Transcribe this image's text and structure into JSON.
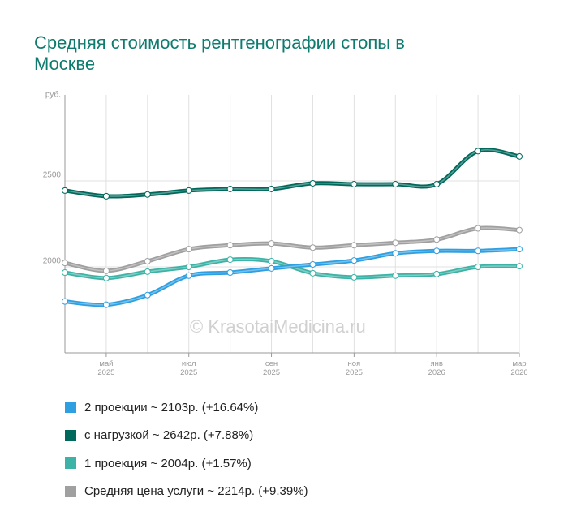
{
  "chart_data": {
    "type": "line",
    "title": "Средняя стоимость рентгенографии стопы в Москве",
    "y_label": "руб.",
    "watermark": "© KrasotaiMedicina.ru",
    "categories": [
      null,
      "май 2025",
      null,
      "июл 2025",
      null,
      "сен 2025",
      null,
      "ноя 2025",
      null,
      "янв 2026",
      null,
      "мар 2026"
    ],
    "ylim": [
      1500,
      3000
    ],
    "yticks": [
      2000,
      2500
    ],
    "grid": true,
    "series": [
      {
        "name": "2 проекции ~ 2103р. (+16.64%)",
        "color": "#2e9fe0",
        "values": [
          1799,
          1780,
          1836,
          1949,
          1967,
          1991,
          2014,
          2037,
          2079,
          2093,
          2093,
          2103
        ]
      },
      {
        "name": "с нагрузкой ~ 2642р. (+7.88%)",
        "color": "#00695c",
        "values": [
          2444,
          2411,
          2421,
          2444,
          2453,
          2453,
          2486,
          2481,
          2481,
          2481,
          2673,
          2642
        ]
      },
      {
        "name": "1 проекция ~ 2004р. (+1.57%)",
        "color": "#3cb3a6",
        "values": [
          1967,
          1935,
          1972,
          2000,
          2042,
          2033,
          1963,
          1939,
          1949,
          1958,
          2000,
          2004
        ]
      },
      {
        "name": "Средняя цена услуги ~ 2214р. (+9.39%)",
        "color": "#a0a0a0",
        "values": [
          2023,
          1977,
          2033,
          2103,
          2126,
          2136,
          2112,
          2126,
          2140,
          2159,
          2224,
          2214
        ]
      }
    ]
  }
}
